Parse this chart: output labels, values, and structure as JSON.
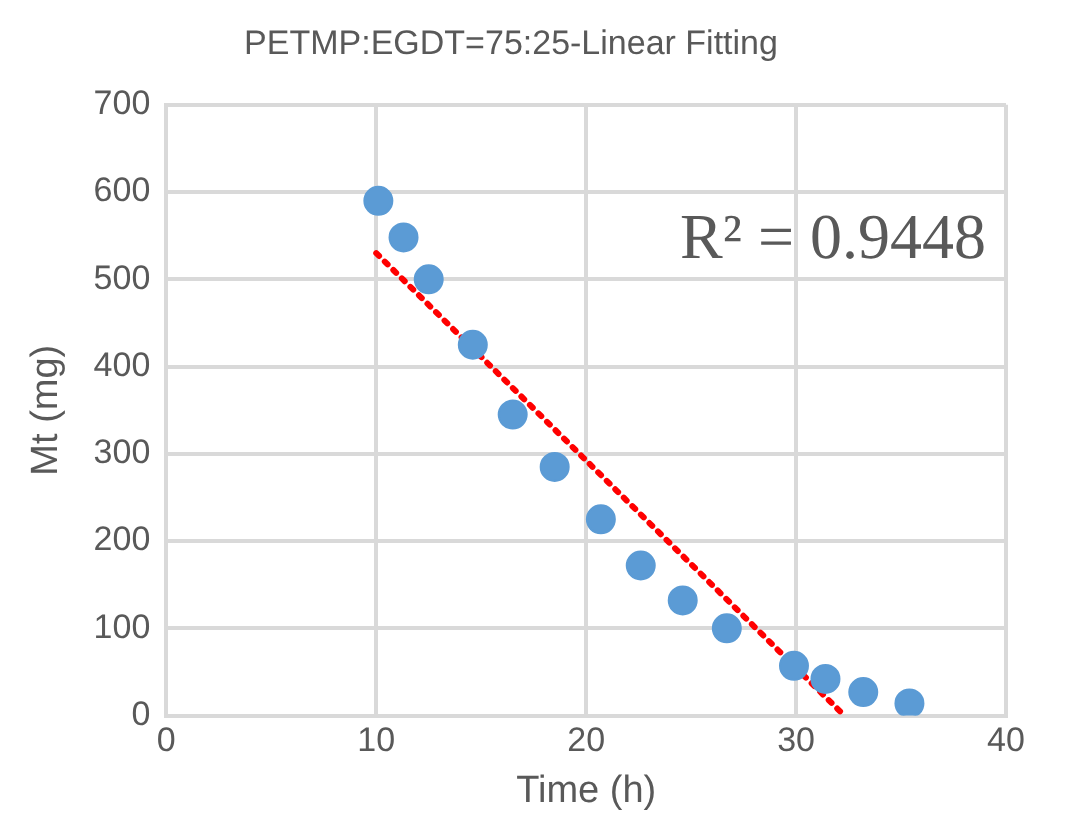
{
  "chart_data": {
    "type": "scatter",
    "title": "PETMP:EGDT=75:25-Linear Fitting",
    "xlabel": "Time (h)",
    "ylabel": "Mt (mg)",
    "series": [
      {
        "color": "#5b9bd5",
        "marker": "circle",
        "x": [
          10.1,
          11.3,
          12.5,
          14.6,
          16.5,
          18.5,
          20.7,
          22.6,
          24.6,
          26.7,
          29.9,
          31.4,
          33.2,
          35.4
        ],
        "values": [
          590,
          548,
          500,
          425,
          345,
          285,
          225,
          172,
          132,
          100,
          57,
          42,
          27,
          14
        ]
      },
      {
        "type": "line",
        "color": "#ff0000",
        "line_style": "dotted",
        "marker": "none",
        "x": [
          10,
          32.3
        ],
        "values": [
          530,
          0
        ]
      }
    ],
    "xlim": [
      0,
      40
    ],
    "xticks": [
      0,
      10,
      20,
      30,
      40
    ],
    "ylim": [
      0,
      700
    ],
    "yticks": [
      0,
      100,
      200,
      300,
      400,
      500,
      600,
      700
    ],
    "grid": true,
    "annotations": [
      "R² = 0.9448"
    ]
  }
}
